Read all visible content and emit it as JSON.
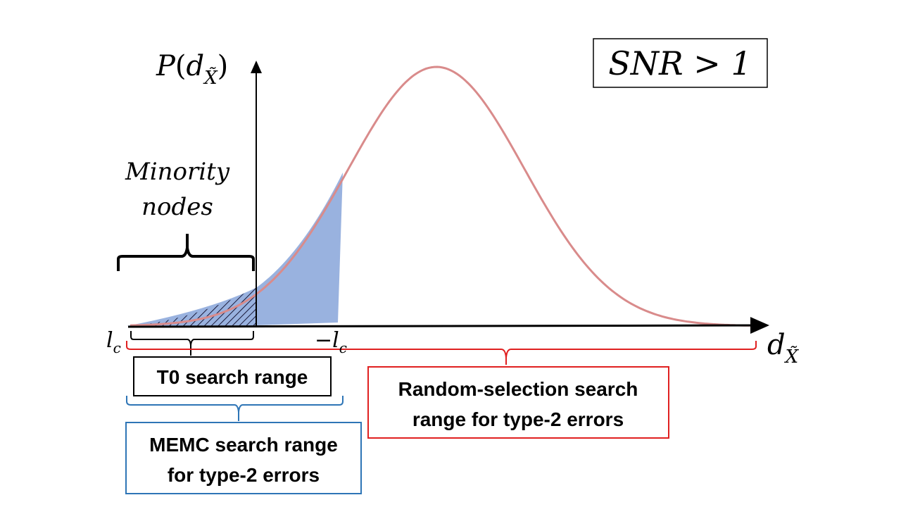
{
  "snr_label": "SNR > 1",
  "y_axis": {
    "func": "P",
    "paren_open": "(",
    "var": "d",
    "sub": "X̃",
    "paren_close": ")"
  },
  "x_axis": {
    "var": "d",
    "sub": "X̃"
  },
  "minority": {
    "line1": "Minority",
    "line2": "nodes"
  },
  "lc_label": {
    "var": "l",
    "sub": "c"
  },
  "neg_lc_label": {
    "minus": "−",
    "var": "l",
    "sub": "c"
  },
  "t0_box": {
    "text": "T0 search range"
  },
  "random_box": {
    "line1": "Random-selection search",
    "line2": "range for type-2 errors"
  },
  "memc_box": {
    "line1": "MEMC search range",
    "line2": "for type-2 errors"
  },
  "colors": {
    "curve": "#d98b8b",
    "shade": "#8eaadb",
    "red_bracket": "#e02020",
    "blue_bracket": "#2e75b6",
    "memc_border": "#2e75b6",
    "random_border": "#e02020",
    "t0_border": "#000000"
  }
}
